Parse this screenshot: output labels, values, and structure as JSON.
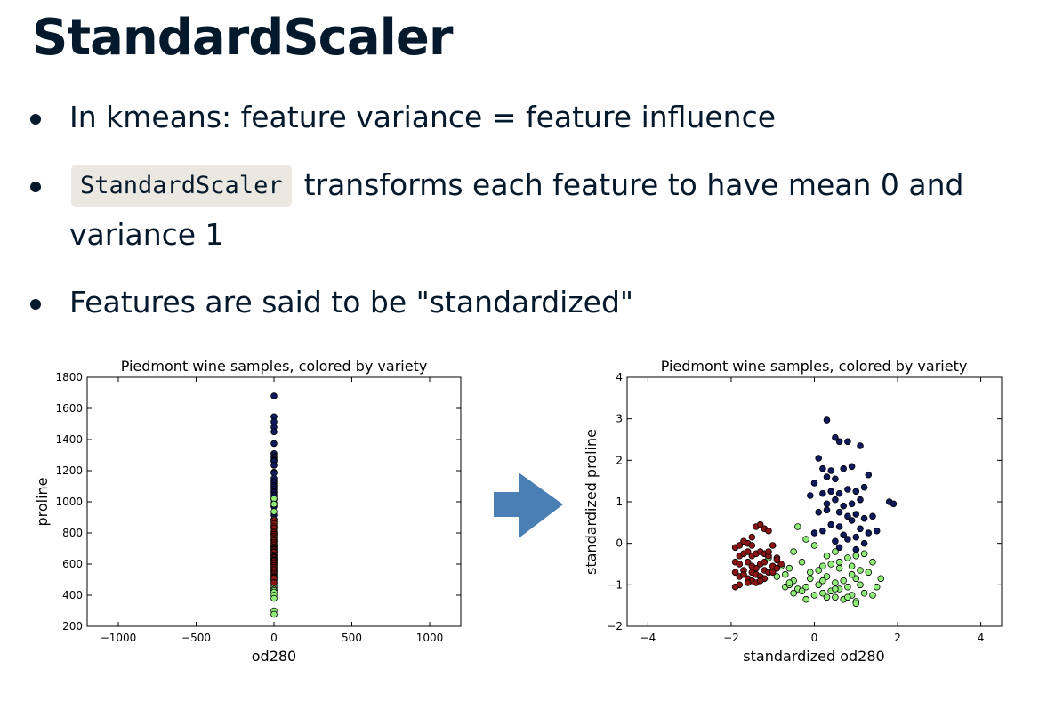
{
  "slide": {
    "title": "StandardScaler",
    "bullets": [
      {
        "text": "In kmeans: feature variance = feature influence"
      },
      {
        "code": "StandardScaler",
        "text": "transforms each feature to have mean 0 and variance 1"
      },
      {
        "text": "Features are said to be \"standardized\""
      }
    ]
  },
  "colors": {
    "text": "#05192d",
    "code_bg": "#ebe8e1",
    "arrow": "#4a7fb4",
    "variety_1": "#0f1a5c",
    "variety_2": "#90ee78",
    "variety_3": "#8b1414"
  },
  "chart_data": [
    {
      "type": "scatter",
      "title": "Piedmont wine samples, colored by variety",
      "xlabel": "od280",
      "ylabel": "proline",
      "xlim": [
        -1200,
        1200
      ],
      "ylim": [
        200,
        1800
      ],
      "xticks": [
        -1000,
        -500,
        0,
        500,
        1000
      ],
      "yticks": [
        200,
        400,
        600,
        800,
        1000,
        1200,
        1400,
        1600,
        1800
      ],
      "xtick_labels": [
        "−1000",
        "−500",
        "0",
        "500",
        "1000"
      ],
      "ytick_labels": [
        "200",
        "400",
        "600",
        "800",
        "1000",
        "1200",
        "1400",
        "1600",
        "1800"
      ],
      "grid": false,
      "series": [
        {
          "color": "#0f1a5c",
          "x": [
            0,
            0,
            0,
            0,
            0,
            0,
            0,
            0,
            0,
            0,
            0,
            0,
            0,
            0,
            0,
            0,
            0,
            0,
            0,
            0,
            0,
            0,
            0,
            0,
            0,
            0,
            0,
            0,
            0,
            0,
            0,
            0,
            0,
            0,
            0
          ],
          "y": [
            1680,
            1547,
            1515,
            1480,
            1450,
            1375,
            1310,
            1295,
            1285,
            1270,
            1265,
            1260,
            1235,
            1190,
            1185,
            1150,
            1130,
            1120,
            1105,
            1095,
            1080,
            1065,
            1060,
            1045,
            1035,
            1020,
            1015,
            990,
            985,
            970,
            915,
            885,
            845,
            830,
            795
          ]
        },
        {
          "color": "#90ee78",
          "x": [
            0,
            0,
            0,
            0,
            0,
            0,
            0,
            0,
            0,
            0,
            0,
            0,
            0,
            0,
            0,
            0,
            0,
            0,
            0,
            0,
            0,
            0,
            0,
            0,
            0,
            0,
            0,
            0,
            0,
            0,
            0,
            0,
            0
          ],
          "y": [
            1020,
            985,
            937,
            886,
            870,
            750,
            720,
            718,
            710,
            680,
            675,
            660,
            630,
            625,
            607,
            600,
            580,
            562,
            550,
            520,
            510,
            502,
            495,
            480,
            465,
            450,
            438,
            430,
            420,
            400,
            380,
            300,
            278
          ]
        },
        {
          "color": "#8b1414",
          "x": [
            0,
            0,
            0,
            0,
            0,
            0,
            0,
            0,
            0,
            0,
            0,
            0,
            0,
            0,
            0,
            0,
            0,
            0,
            0,
            0,
            0,
            0,
            0,
            0,
            0,
            0,
            0,
            0,
            0,
            0,
            0,
            0,
            0,
            0,
            0,
            0,
            0,
            0,
            0,
            0
          ],
          "y": [
            880,
            860,
            840,
            830,
            810,
            800,
            790,
            780,
            770,
            760,
            750,
            740,
            730,
            720,
            710,
            700,
            695,
            690,
            680,
            675,
            660,
            650,
            645,
            640,
            630,
            625,
            620,
            610,
            600,
            590,
            580,
            570,
            560,
            550,
            540,
            530,
            520,
            515,
            510,
            480
          ]
        }
      ]
    },
    {
      "type": "scatter",
      "title": "Piedmont wine samples, colored by variety",
      "xlabel": "standardized od280",
      "ylabel": "standardized proline",
      "xlim": [
        -4.5,
        4.5
      ],
      "ylim": [
        -2,
        4
      ],
      "xticks": [
        -4,
        -2,
        0,
        2,
        4
      ],
      "yticks": [
        -2,
        -1,
        0,
        1,
        2,
        3,
        4
      ],
      "xtick_labels": [
        "−4",
        "−2",
        "0",
        "2",
        "4"
      ],
      "ytick_labels": [
        "−2",
        "−1",
        "0",
        "1",
        "2",
        "3",
        "4"
      ],
      "grid": false,
      "series": [
        {
          "color": "#0f1a5c",
          "x": [
            0.3,
            0.5,
            0.6,
            0.8,
            1.1,
            0.1,
            0.2,
            0.4,
            0.7,
            0.9,
            0.3,
            0.5,
            1.3,
            0.0,
            -0.1,
            0.2,
            0.4,
            0.6,
            0.8,
            1.0,
            1.2,
            0.3,
            0.5,
            0.7,
            0.9,
            1.1,
            1.8,
            1.9,
            0.1,
            0.3,
            0.6,
            0.8,
            1.0,
            1.2,
            1.4,
            0.4,
            0.6,
            0.9,
            1.1,
            1.5,
            0.0,
            0.2,
            0.7,
            1.0,
            1.3,
            0.5,
            0.8,
            1.2,
            0.6,
            1.0
          ],
          "y": [
            2.97,
            2.55,
            2.45,
            2.45,
            2.35,
            2.05,
            1.8,
            1.75,
            1.8,
            1.85,
            1.6,
            1.55,
            1.65,
            1.45,
            1.15,
            1.2,
            1.25,
            1.2,
            1.3,
            1.25,
            1.35,
            0.95,
            1.05,
            0.9,
            0.95,
            1.05,
            1.0,
            0.95,
            0.75,
            0.8,
            0.75,
            0.65,
            0.7,
            0.6,
            0.65,
            0.45,
            0.4,
            0.55,
            0.35,
            0.3,
            0.25,
            0.3,
            0.2,
            0.15,
            0.25,
            0.05,
            0.1,
            0.0,
            -0.1,
            -0.15
          ]
        },
        {
          "color": "#90ee78",
          "x": [
            -1.1,
            -0.5,
            -0.4,
            -0.2,
            0.0,
            0.3,
            0.5,
            0.8,
            1.0,
            1.2,
            1.4,
            -0.8,
            -0.6,
            -0.3,
            0.1,
            0.2,
            0.4,
            0.6,
            0.9,
            1.1,
            1.3,
            1.6,
            -0.9,
            -0.7,
            -0.5,
            -0.1,
            0.3,
            0.5,
            0.7,
            1.0,
            1.5,
            -0.7,
            -0.6,
            -0.4,
            -0.2,
            0.1,
            0.4,
            0.6,
            0.8,
            1.1,
            -0.5,
            -0.3,
            0.0,
            0.2,
            0.5,
            0.9,
            1.2,
            -0.6,
            -0.2,
            0.3,
            0.7,
            1.0,
            1.4,
            -0.1,
            0.2,
            0.5,
            0.8,
            1.0,
            0.6,
            0.9
          ],
          "y": [
            -0.35,
            -0.2,
            0.4,
            0.1,
            -0.05,
            -0.3,
            -0.2,
            -0.35,
            -0.3,
            -0.25,
            -0.45,
            -0.55,
            -0.6,
            -0.45,
            -0.65,
            -0.55,
            -0.5,
            -0.6,
            -0.55,
            -0.65,
            -0.7,
            -0.85,
            -0.8,
            -0.75,
            -0.9,
            -0.85,
            -0.8,
            -0.95,
            -0.9,
            -0.85,
            -1.05,
            -1.05,
            -1.0,
            -1.1,
            -1.05,
            -1.0,
            -1.15,
            -1.1,
            -1.05,
            -1.0,
            -1.2,
            -1.15,
            -1.25,
            -1.2,
            -1.3,
            -1.25,
            -1.2,
            -0.95,
            -1.35,
            -1.3,
            -1.35,
            -1.4,
            -1.25,
            -0.7,
            -0.9,
            -1.1,
            -1.3,
            -1.45,
            -0.45,
            -0.75
          ]
        },
        {
          "color": "#8b1414",
          "x": [
            -1.9,
            -1.8,
            -1.7,
            -1.6,
            -1.5,
            -1.4,
            -1.3,
            -1.2,
            -1.1,
            -1.0,
            -1.8,
            -1.7,
            -1.6,
            -1.5,
            -1.4,
            -1.3,
            -1.2,
            -1.1,
            -0.9,
            -1.9,
            -1.8,
            -1.6,
            -1.5,
            -1.3,
            -1.2,
            -1.0,
            -0.8,
            -1.9,
            -1.7,
            -1.5,
            -1.4,
            -1.2,
            -1.1,
            -0.9,
            -1.8,
            -1.6,
            -1.4,
            -1.3,
            -1.0,
            -1.5,
            -1.4,
            -1.2,
            -1.8,
            -1.6,
            -1.3,
            -1.9,
            -1.7,
            -0.9,
            -1.1,
            -1.5
          ],
          "y": [
            -0.1,
            -0.05,
            0.05,
            0.0,
            -0.05,
            0.4,
            0.45,
            0.35,
            0.3,
            -0.05,
            -0.3,
            -0.25,
            -0.2,
            -0.3,
            -0.25,
            -0.2,
            -0.25,
            -0.3,
            -0.35,
            -0.45,
            -0.5,
            -0.45,
            -0.55,
            -0.5,
            -0.45,
            -0.55,
            -0.5,
            -0.7,
            -0.65,
            -0.7,
            -0.6,
            -0.65,
            -0.7,
            -0.6,
            -0.8,
            -0.85,
            -0.75,
            -0.8,
            -0.7,
            -0.9,
            -0.95,
            -0.85,
            -1.0,
            -0.95,
            -0.9,
            -1.05,
            -0.75,
            -0.4,
            -0.2,
            0.15
          ]
        }
      ]
    }
  ]
}
